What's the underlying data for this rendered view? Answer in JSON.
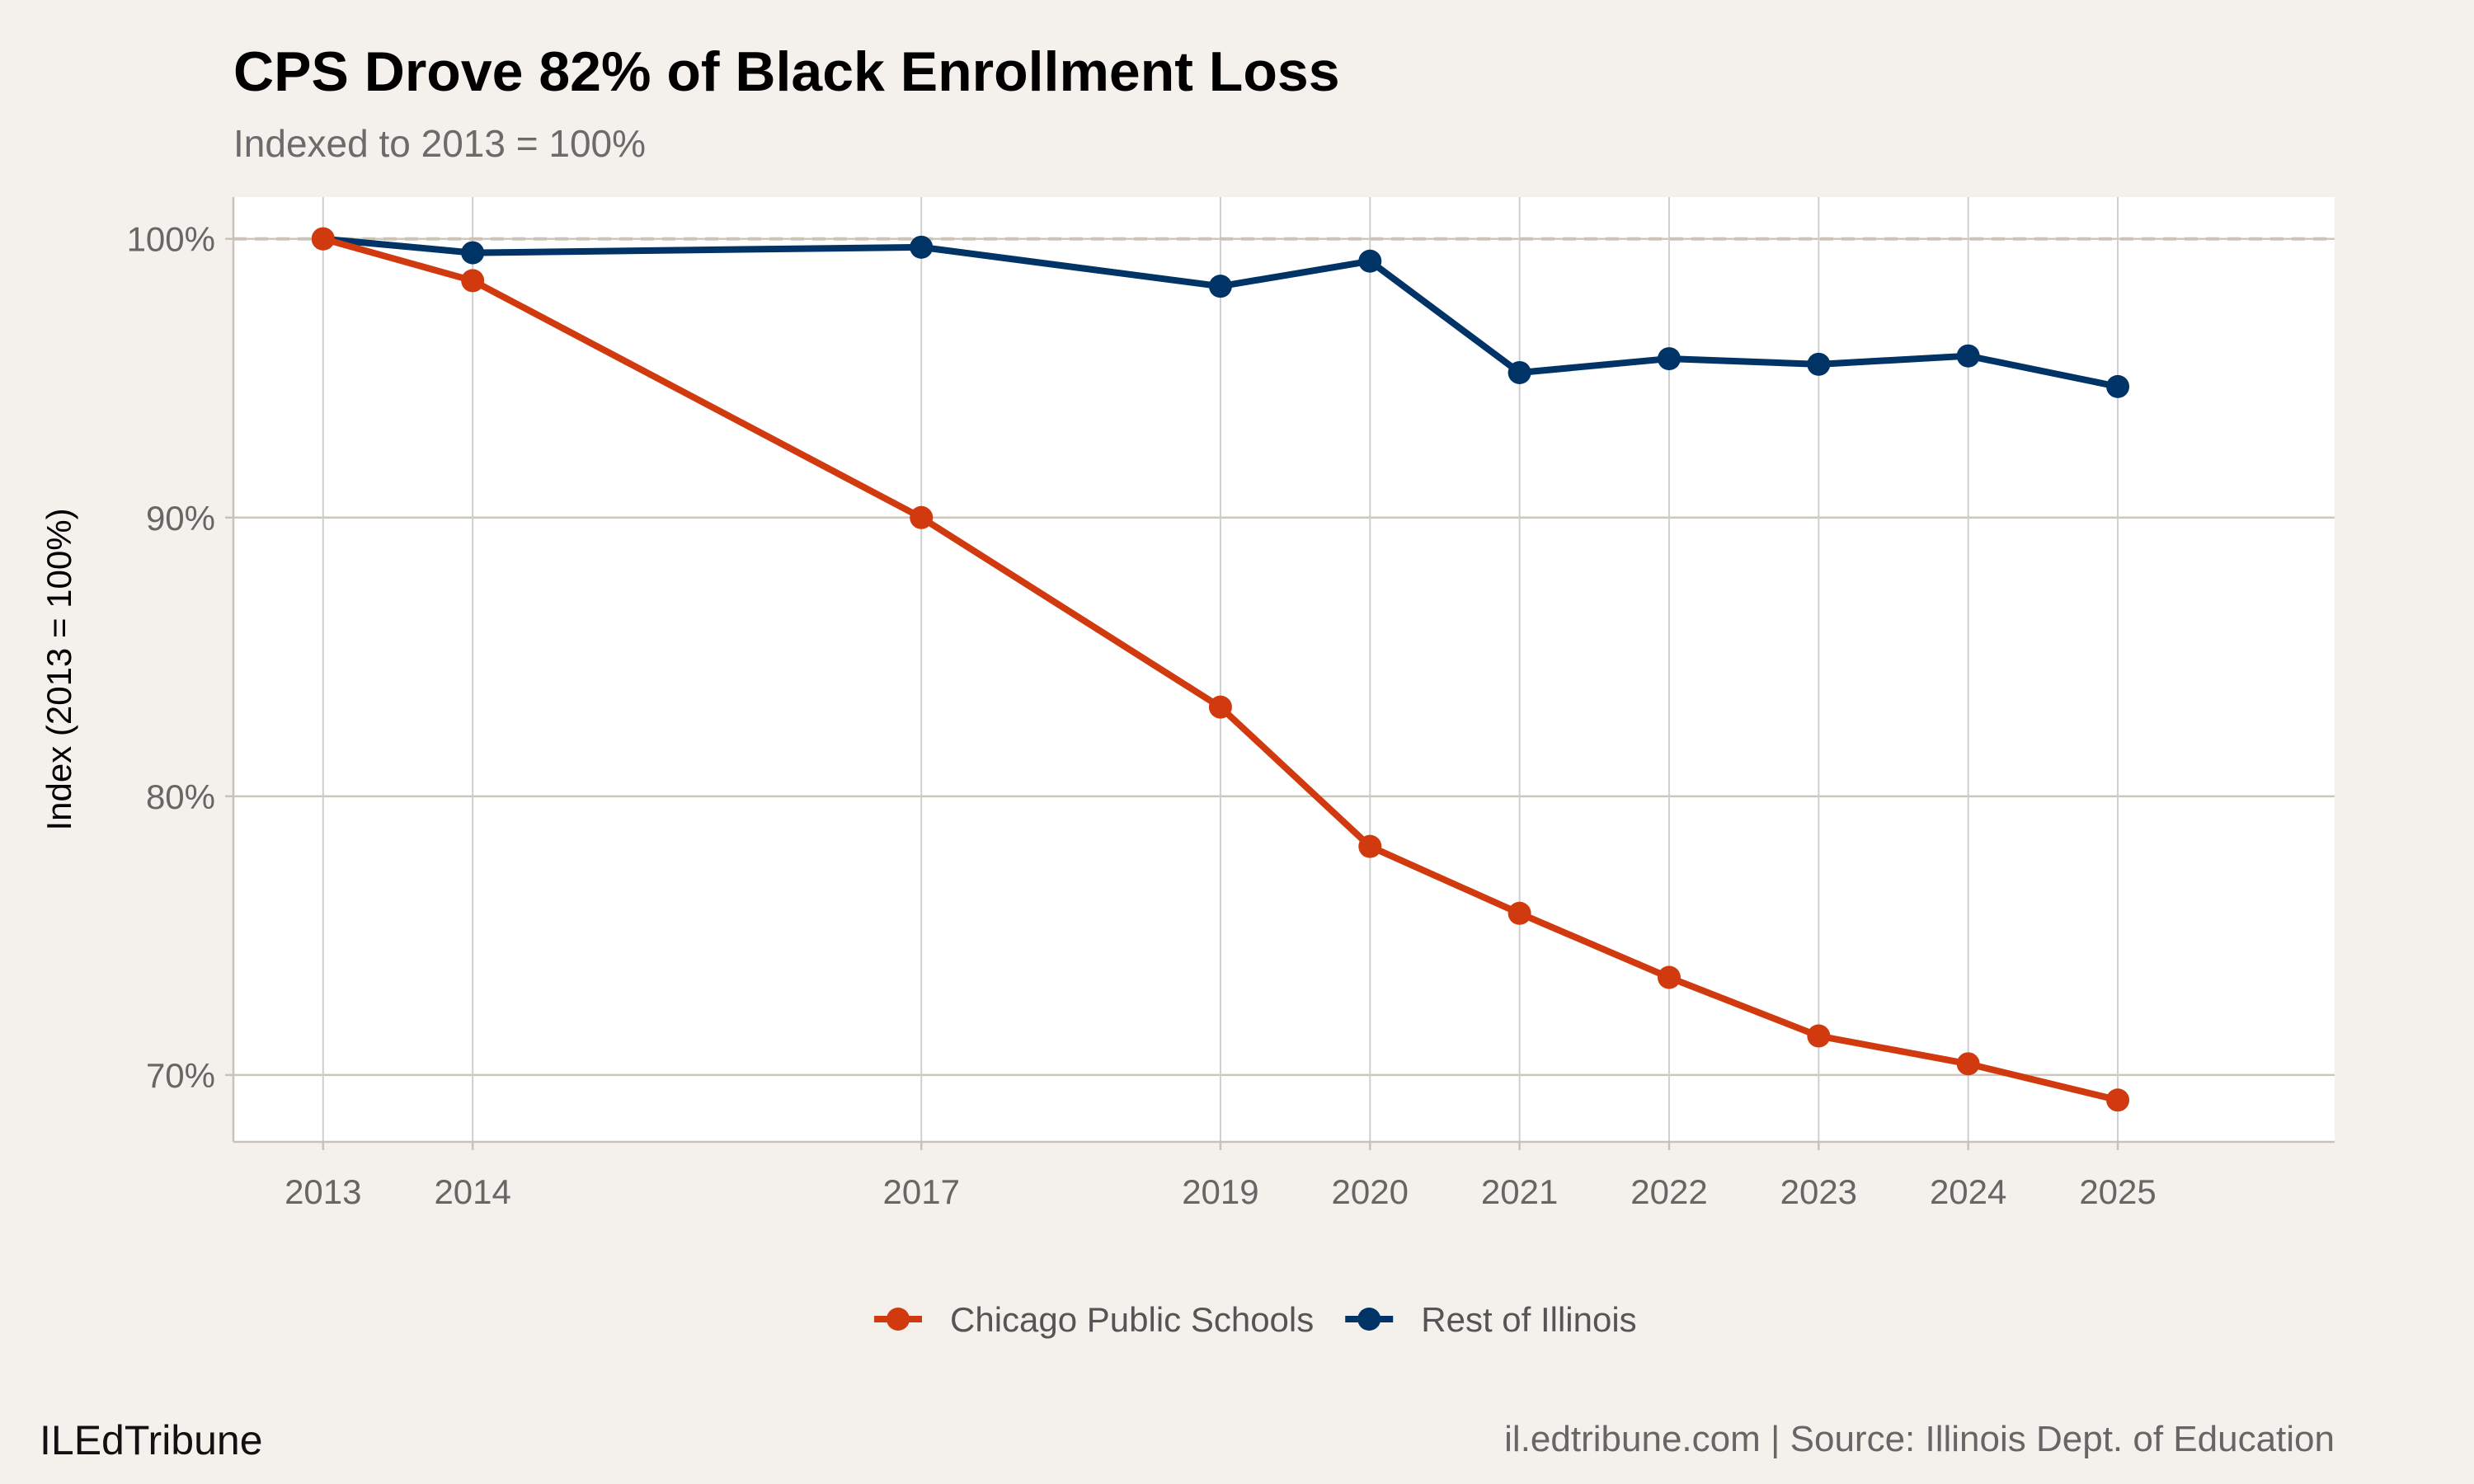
{
  "chart_data": {
    "type": "line",
    "title": "CPS Drove 82% of Black Enrollment Loss",
    "subtitle": "Indexed to 2013 = 100%",
    "xlabel": "",
    "ylabel": "Index (2013 = 100%)",
    "x": [
      2013,
      2014,
      2017,
      2019,
      2020,
      2021,
      2022,
      2023,
      2024,
      2025
    ],
    "x_tick_labels": [
      "2013",
      "2014",
      "2017",
      "2019",
      "2020",
      "2021",
      "2022",
      "2023",
      "2024",
      "2025"
    ],
    "y_ticks": [
      70,
      80,
      90,
      100
    ],
    "y_tick_labels": [
      "70%",
      "80%",
      "90%",
      "100%"
    ],
    "xlim": [
      2012.4,
      2026.45
    ],
    "ylim": [
      67.6,
      101.5
    ],
    "grid": true,
    "reference_line": {
      "y": 100,
      "style": "dashed"
    },
    "legend_position": "bottom",
    "series": [
      {
        "name": "Chicago Public Schools",
        "color": "#d03a0e",
        "values": [
          100,
          98.5,
          90.0,
          83.2,
          78.2,
          75.8,
          73.5,
          71.4,
          70.4,
          69.1
        ]
      },
      {
        "name": "Rest of Illinois",
        "color": "#003366",
        "values": [
          100,
          99.5,
          99.7,
          98.3,
          99.2,
          95.2,
          95.7,
          95.5,
          95.8,
          94.7
        ]
      }
    ]
  },
  "footer": {
    "brand": "ILEdTribune",
    "source": "il.edtribune.com | Source: Illinois Dept. of Education"
  }
}
